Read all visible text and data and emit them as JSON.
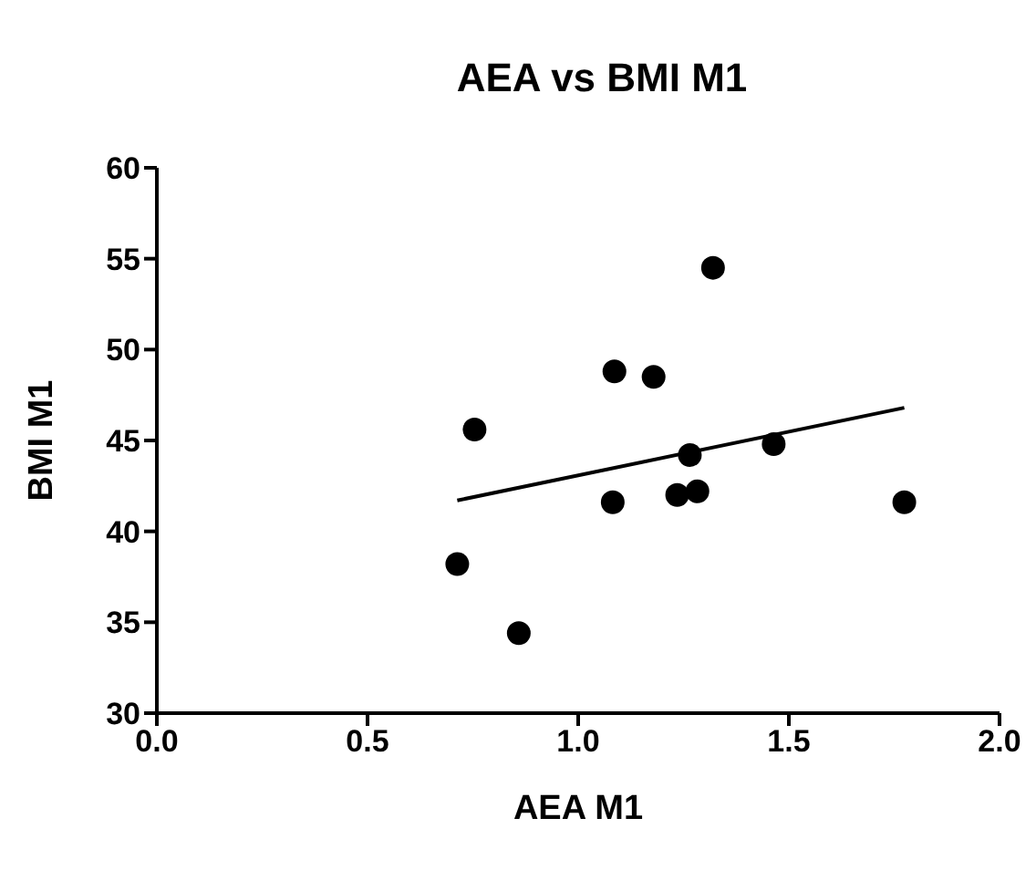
{
  "chart_data": {
    "type": "scatter",
    "title": "AEA vs BMI M1",
    "xlabel": "AEA M1",
    "ylabel": "BMI M1",
    "xlim": [
      0,
      2
    ],
    "xticks": [
      {
        "value": 0,
        "label": "0.0"
      },
      {
        "value": 0.5,
        "label": "0.5"
      },
      {
        "value": 1,
        "label": "1.0"
      },
      {
        "value": 1.5,
        "label": "1.5"
      },
      {
        "value": 2,
        "label": "2.0"
      }
    ],
    "ylim": [
      30,
      60
    ],
    "yticks": [
      30,
      35,
      40,
      45,
      50,
      55,
      60
    ],
    "grid": false,
    "legend": false,
    "series": [
      {
        "type": "scatter",
        "color": "#000000",
        "marker": "circle",
        "x": [
          0.754,
          0.713,
          0.859,
          1.086,
          1.179,
          1.32,
          1.265,
          1.464,
          1.082,
          1.235,
          1.283,
          1.774
        ],
        "values": [
          45.6,
          38.2,
          34.4,
          48.8,
          48.5,
          54.5,
          44.2,
          44.8,
          41.6,
          42.0,
          42.2,
          41.6
        ]
      },
      {
        "type": "line",
        "color": "#000000",
        "marker": "none",
        "line_style": "solid",
        "x": [
          0.713,
          1.774
        ],
        "values": [
          41.7,
          46.8
        ]
      }
    ]
  }
}
